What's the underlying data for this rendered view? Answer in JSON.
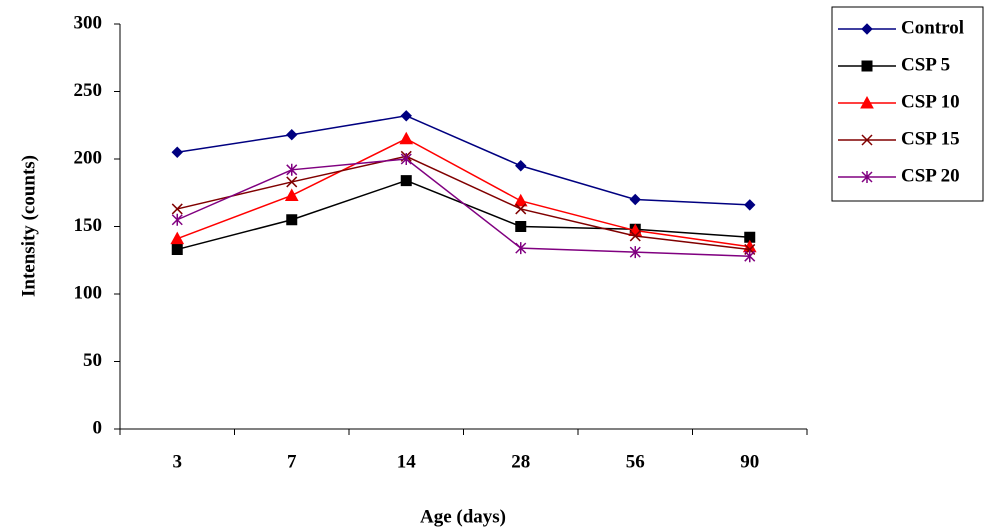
{
  "chart_data": {
    "type": "line",
    "x_label": "Age (days)",
    "y_label": "Intensity (counts)",
    "categories": [
      "3",
      "7",
      "14",
      "28",
      "56",
      "90"
    ],
    "ylim": [
      0,
      300
    ],
    "yticks": [
      0,
      50,
      100,
      150,
      200,
      250,
      300
    ],
    "legend": "right",
    "series": [
      {
        "name": "Control",
        "color": "#000080",
        "marker": "diamond",
        "values": [
          205,
          218,
          232,
          195,
          170,
          166
        ]
      },
      {
        "name": "CSP 5",
        "color": "#000000",
        "marker": "square",
        "values": [
          133,
          155,
          184,
          150,
          148,
          142
        ]
      },
      {
        "name": "CSP 10",
        "color": "#ff0000",
        "marker": "triangle",
        "values": [
          141,
          173,
          215,
          169,
          147,
          135
        ]
      },
      {
        "name": "CSP 15",
        "color": "#800000",
        "marker": "x",
        "values": [
          163,
          183,
          202,
          163,
          143,
          133
        ]
      },
      {
        "name": "CSP 20",
        "color": "#800080",
        "marker": "asterisk",
        "values": [
          155,
          192,
          200,
          134,
          131,
          128
        ]
      }
    ]
  }
}
